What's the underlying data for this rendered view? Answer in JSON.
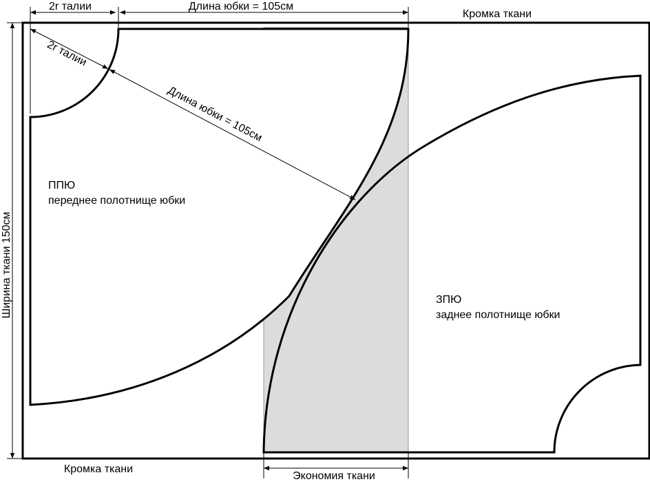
{
  "top_dimensions": {
    "waist": "2r талии",
    "skirt_length": "Длина юбки = 105см"
  },
  "selvedge_top": "Кромка ткани",
  "diagonal_dimensions": {
    "waist": "2r талии",
    "skirt_length": "Длина юбки = 105см"
  },
  "front_panel": {
    "code": "ППЮ",
    "name": "переднее полотнище юбки"
  },
  "back_panel": {
    "code": "ЗПЮ",
    "name": "заднее полотнище юбки"
  },
  "fabric_width": "Ширина ткани 150см",
  "selvedge_bottom": "Кромка ткани",
  "saving": "Экономия ткани"
}
